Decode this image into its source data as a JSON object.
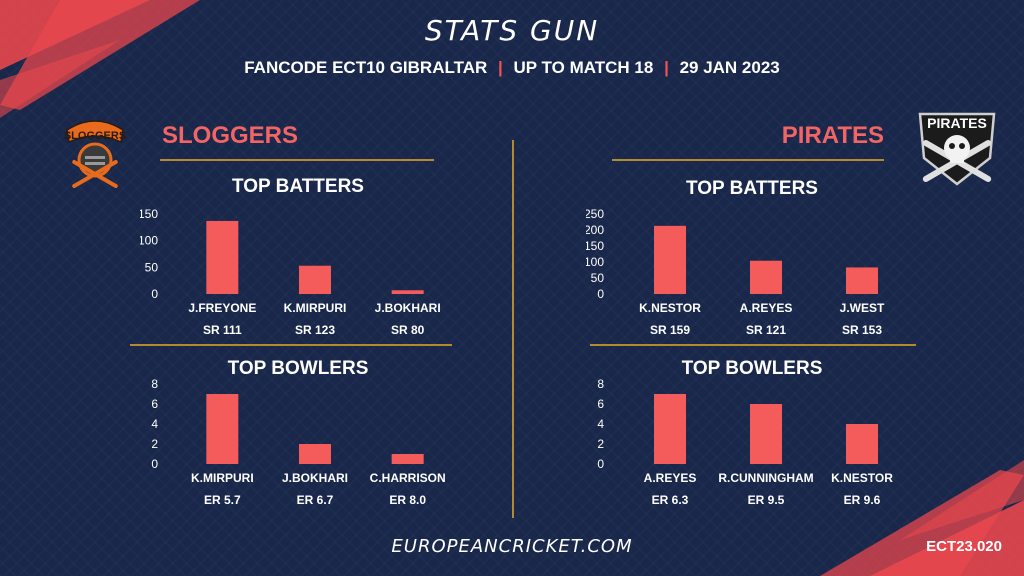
{
  "header": {
    "title": "STATS GUN",
    "competition": "FANCODE ECT10 GIBRALTAR",
    "stage": "UP TO MATCH  18",
    "date": "29 JAN 2023"
  },
  "teams": {
    "left": {
      "name": "SLOGGERS",
      "logo_text": "SLOGGERS"
    },
    "right": {
      "name": "PIRATES",
      "logo_text": "PIRATES"
    }
  },
  "sections": {
    "batters": "TOP BATTERS",
    "bowlers": "TOP BOWLERS"
  },
  "footer": {
    "site": "EUROPEANCRICKET.COM",
    "code": "ECT23.020"
  },
  "colors": {
    "bar": "#f45b5b",
    "background": "#18274a",
    "rule": "#b58a2e",
    "accent": "#f36464"
  },
  "chart_data": [
    {
      "id": "sloggers-batters",
      "type": "bar",
      "title": "TOP BATTERS",
      "categories": [
        "J.FREYONE",
        "K.MIRPURI",
        "J.BOKHARI"
      ],
      "values": [
        137,
        53,
        7
      ],
      "sub_labels": [
        "SR 111",
        "SR 123",
        "SR 80"
      ],
      "yticks": [
        0,
        50,
        100,
        150
      ],
      "ylim": [
        0,
        150
      ]
    },
    {
      "id": "sloggers-bowlers",
      "type": "bar",
      "title": "TOP BOWLERS",
      "categories": [
        "K.MIRPURI",
        "J.BOKHARI",
        "C.HARRISON"
      ],
      "values": [
        7,
        2,
        1
      ],
      "sub_labels": [
        "ER 5.7",
        "ER 6.7",
        "ER 8.0"
      ],
      "yticks": [
        0,
        2,
        4,
        6,
        8
      ],
      "ylim": [
        0,
        8
      ]
    },
    {
      "id": "pirates-batters",
      "type": "bar",
      "title": "TOP BATTERS",
      "categories": [
        "K.NESTOR",
        "A.REYES",
        "J.WEST"
      ],
      "values": [
        213,
        104,
        83
      ],
      "sub_labels": [
        "SR 159",
        "SR 121",
        "SR 153"
      ],
      "yticks": [
        0,
        50,
        100,
        150,
        200,
        250
      ],
      "ylim": [
        0,
        250
      ]
    },
    {
      "id": "pirates-bowlers",
      "type": "bar",
      "title": "TOP BOWLERS",
      "categories": [
        "A.REYES",
        "R.CUNNINGHAM",
        "K.NESTOR"
      ],
      "values": [
        7,
        6,
        4
      ],
      "sub_labels": [
        "ER 6.3",
        "ER 9.5",
        "ER 9.6"
      ],
      "yticks": [
        0,
        2,
        4,
        6,
        8
      ],
      "ylim": [
        0,
        8
      ]
    }
  ]
}
